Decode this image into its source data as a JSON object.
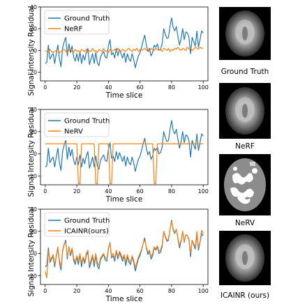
{
  "chart_data": [
    {
      "type": "line",
      "ylabel": "Signal Intensity Residual",
      "xlabel": "Time slice",
      "xlim": [
        -3,
        103
      ],
      "ylim": [
        -28,
        40
      ],
      "xticks": [
        0,
        20,
        40,
        60,
        80,
        100
      ],
      "yticks": [
        -20,
        0,
        20,
        40
      ],
      "legend_position": "upper-left",
      "grid": false,
      "series": [
        {
          "name": "Ground Truth",
          "color": "#1f77b4",
          "values": [
            -12,
            -11,
            5,
            -8,
            -5,
            -3,
            -12,
            -3,
            5,
            -8,
            -15,
            2,
            8,
            12,
            -5,
            6,
            -2,
            4,
            -6,
            -10,
            -3,
            -10,
            -1,
            -12,
            -4,
            -9,
            -2,
            2,
            -13,
            -8,
            -3,
            -12,
            -2,
            -11,
            -14,
            -6,
            -3,
            -1,
            -6,
            -7,
            4,
            10,
            -4,
            -2,
            -7,
            2,
            -5,
            1,
            -3,
            -7,
            -2,
            -11,
            -3,
            -8,
            -10,
            -3,
            -8,
            -16,
            -10,
            -5,
            -2,
            3,
            9,
            14,
            5,
            -1,
            2,
            -5,
            -2,
            5,
            3,
            6,
            0,
            1,
            6,
            20,
            15,
            11,
            12,
            22,
            30,
            21,
            18,
            22,
            13,
            5,
            11,
            20,
            10,
            17,
            16,
            12,
            -3,
            12,
            8,
            4,
            18,
            3,
            10,
            18,
            16
          ]
        },
        {
          "name": "NeRF",
          "color": "#ff7f0e",
          "values": [
            0,
            -1,
            -2,
            1,
            -1,
            -2,
            -1,
            0,
            1,
            -2,
            -1,
            0,
            1,
            -1,
            -2,
            0,
            2,
            -1,
            -2,
            1,
            -1,
            0,
            -2,
            1,
            0,
            -1,
            1,
            -2,
            0,
            -1,
            2,
            -1,
            0,
            -2,
            1,
            0,
            -1,
            2,
            -1,
            0,
            -2,
            1,
            -1,
            0,
            1,
            -1,
            2,
            0,
            -1,
            1,
            0,
            -1,
            1,
            2,
            0,
            -1,
            1,
            0,
            2,
            -1,
            1,
            0,
            1,
            2,
            0,
            1,
            -1,
            2,
            1,
            0,
            2,
            1,
            0,
            1,
            -1,
            2,
            1,
            0,
            2,
            -1,
            1,
            0,
            2,
            1,
            3,
            1,
            0,
            2,
            1,
            0,
            3,
            1,
            2,
            0,
            1,
            3,
            2,
            1,
            3,
            2,
            2
          ]
        }
      ]
    },
    {
      "type": "line",
      "ylabel": "",
      "xlabel": "Time slice",
      "xlim": [
        -3,
        103
      ],
      "ylim": [
        -28,
        40
      ],
      "xticks": [
        0,
        20,
        40,
        60,
        80,
        100
      ],
      "yticks": [
        -20,
        0,
        20,
        40
      ],
      "legend_position": "upper-left",
      "grid": false,
      "series": [
        {
          "name": "Ground Truth",
          "color": "#1f77b4",
          "values": [
            -12,
            -11,
            5,
            -8,
            -5,
            -3,
            -12,
            -3,
            5,
            -8,
            -15,
            2,
            8,
            12,
            -5,
            6,
            -2,
            4,
            -6,
            -10,
            -3,
            -10,
            -1,
            -12,
            -4,
            -9,
            -2,
            2,
            -13,
            -8,
            -3,
            -12,
            -2,
            -11,
            -14,
            -6,
            -3,
            -1,
            -6,
            -7,
            4,
            10,
            -4,
            -2,
            -7,
            2,
            -5,
            1,
            -3,
            -7,
            -2,
            -11,
            -3,
            -8,
            -10,
            -3,
            -8,
            -16,
            -10,
            -5,
            -2,
            3,
            9,
            14,
            5,
            -1,
            2,
            -5,
            -2,
            5,
            3,
            6,
            0,
            1,
            6,
            20,
            15,
            11,
            12,
            22,
            30,
            21,
            18,
            22,
            13,
            5,
            11,
            20,
            10,
            17,
            16,
            12,
            -3,
            12,
            8,
            4,
            18,
            3,
            10,
            18,
            16
          ]
        },
        {
          "name": "NeRV",
          "color": "#ff7f0e",
          "values": [
            9,
            9,
            9,
            9,
            9,
            9,
            9,
            9,
            9,
            9,
            9,
            9,
            9,
            9,
            9,
            9,
            9,
            9,
            9,
            9,
            9,
            -27,
            -27,
            9,
            9,
            9,
            9,
            9,
            9,
            9,
            9,
            9,
            -27,
            -27,
            9,
            9,
            9,
            9,
            9,
            9,
            9,
            -27,
            -27,
            9,
            9,
            9,
            9,
            9,
            9,
            9,
            9,
            9,
            9,
            9,
            9,
            9,
            9,
            9,
            9,
            9,
            9,
            9,
            9,
            9,
            9,
            9,
            9,
            9,
            9,
            -27,
            -27,
            9,
            9,
            9,
            9,
            9,
            9,
            9,
            9,
            9,
            9,
            9,
            9,
            9,
            9,
            9,
            9,
            9,
            9,
            9,
            9,
            9,
            9,
            9,
            9,
            9,
            9,
            9,
            9,
            9,
            9
          ]
        }
      ]
    },
    {
      "type": "line",
      "ylabel": "",
      "xlabel": "Time slice",
      "xlim": [
        -3,
        103
      ],
      "ylim": [
        -28,
        40
      ],
      "xticks": [
        0,
        20,
        40,
        60,
        80,
        100
      ],
      "yticks": [
        -20,
        0,
        20,
        40
      ],
      "legend_position": "upper-left",
      "grid": false,
      "series": [
        {
          "name": "Ground Truth",
          "color": "#1f77b4",
          "values": [
            -12,
            -11,
            5,
            -8,
            -5,
            -3,
            -12,
            -3,
            5,
            -8,
            -15,
            2,
            8,
            12,
            -5,
            6,
            -2,
            4,
            -6,
            -10,
            -3,
            -10,
            -1,
            -12,
            -4,
            -9,
            -2,
            2,
            -13,
            -8,
            -3,
            -12,
            -2,
            -11,
            -14,
            -6,
            -3,
            -1,
            -6,
            -7,
            4,
            10,
            -4,
            -2,
            -7,
            2,
            -5,
            1,
            -3,
            -7,
            -2,
            -11,
            -3,
            -8,
            -10,
            -3,
            -8,
            -16,
            -10,
            -5,
            -2,
            3,
            9,
            14,
            5,
            -1,
            2,
            -5,
            -2,
            5,
            3,
            6,
            0,
            1,
            6,
            20,
            15,
            11,
            12,
            22,
            30,
            21,
            18,
            22,
            13,
            5,
            11,
            20,
            10,
            17,
            16,
            12,
            -3,
            12,
            8,
            4,
            18,
            3,
            10,
            18,
            16
          ]
        },
        {
          "name": "ICAINR(ours)",
          "color": "#ff7f0e",
          "values": [
            -16,
            -22,
            2,
            -6,
            -4,
            -1,
            -10,
            -2,
            6,
            -6,
            -12,
            3,
            9,
            10,
            -3,
            5,
            0,
            5,
            -4,
            -8,
            -2,
            -7,
            0,
            -9,
            -3,
            -7,
            0,
            3,
            -10,
            -6,
            -1,
            -9,
            0,
            -8,
            -11,
            -4,
            -2,
            0,
            -4,
            -5,
            5,
            9,
            -2,
            0,
            -5,
            3,
            -3,
            2,
            -1,
            -5,
            -1,
            -8,
            -1,
            -6,
            -8,
            -2,
            -6,
            -13,
            -8,
            -3,
            0,
            4,
            9,
            12,
            6,
            1,
            3,
            -3,
            0,
            6,
            4,
            7,
            2,
            3,
            8,
            20,
            16,
            12,
            13,
            22,
            29,
            22,
            19,
            22,
            14,
            7,
            12,
            20,
            11,
            17,
            16,
            13,
            0,
            12,
            9,
            6,
            20,
            5,
            11,
            21,
            18
          ]
        }
      ]
    }
  ],
  "images": [
    {
      "caption": "Ground Truth",
      "style": "gt"
    },
    {
      "caption": "NeRF",
      "style": "gt"
    },
    {
      "caption": "NeRV",
      "style": "nerv"
    },
    {
      "caption": "ICAINR (ours)",
      "style": "gt"
    }
  ]
}
